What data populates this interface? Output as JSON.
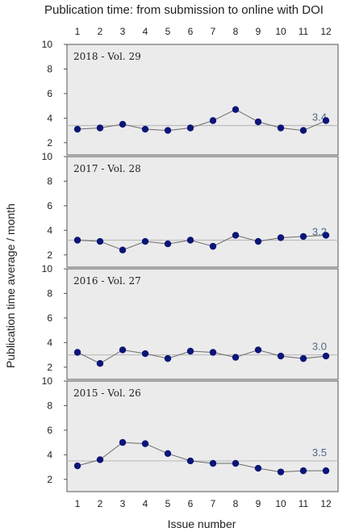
{
  "chart_data": {
    "type": "line",
    "title": "Publication time: from submission to online with DOI",
    "ylabel": "Publication time average / month",
    "xlabel": "Issue number",
    "x": [
      1,
      2,
      3,
      4,
      5,
      6,
      7,
      8,
      9,
      10,
      11,
      12
    ],
    "ylim": [
      1,
      10
    ],
    "yticks": [
      2,
      4,
      6,
      8,
      10
    ],
    "grid": false,
    "colors": {
      "panel_bg": "#ebebeb",
      "marker": "#0a1578",
      "line": "#6b6b6b",
      "avg_line": "#bdbdbd",
      "avg_text": "#4a6a8a"
    },
    "panels": [
      {
        "label": "2018 - Vol. 29",
        "average": 3.4,
        "average_label": "3.4",
        "values": [
          3.1,
          3.2,
          3.5,
          3.1,
          3.0,
          3.2,
          3.8,
          4.7,
          3.7,
          3.2,
          3.0,
          3.8
        ]
      },
      {
        "label": "2017 - Vol. 28",
        "average": 3.2,
        "average_label": "3.2",
        "values": [
          3.2,
          3.1,
          2.4,
          3.1,
          2.9,
          3.2,
          2.7,
          3.6,
          3.1,
          3.4,
          3.5,
          3.6
        ]
      },
      {
        "label": "2016 - Vol. 27",
        "average": 3.0,
        "average_label": "3.0",
        "values": [
          3.2,
          2.3,
          3.4,
          3.1,
          2.7,
          3.3,
          3.2,
          2.8,
          3.4,
          2.9,
          2.7,
          2.9
        ]
      },
      {
        "label": "2015 - Vol. 26",
        "average": 3.5,
        "average_label": "3.5",
        "values": [
          3.1,
          3.6,
          5.0,
          4.9,
          4.1,
          3.5,
          3.3,
          3.3,
          2.9,
          2.6,
          2.7,
          2.7
        ]
      }
    ]
  }
}
